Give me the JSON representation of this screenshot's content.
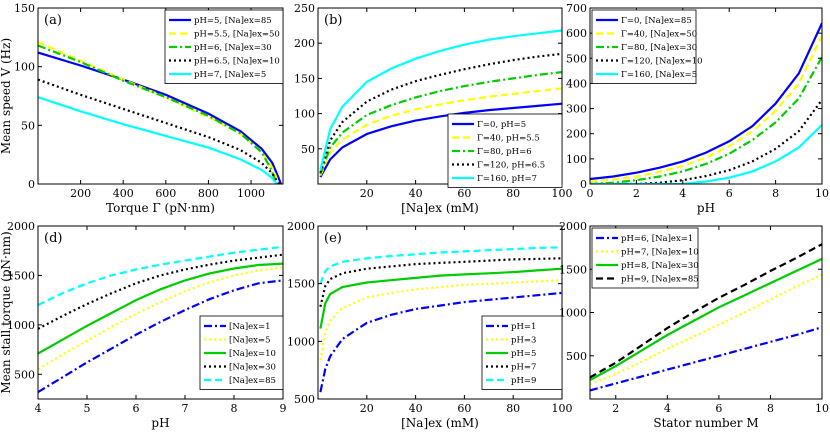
{
  "chart_data": [
    {
      "panel": "(a)",
      "type": "line",
      "xlabel": "Torque Γ (pN·nm)",
      "ylabel": "Mean speed V̄ (Hz)",
      "xlim": [
        0,
        1150
      ],
      "ylim": [
        0,
        150
      ],
      "xticks": [
        200,
        400,
        600,
        800,
        1000
      ],
      "yticks": [
        0,
        50,
        100,
        150
      ],
      "legend_position": "top-right",
      "series": [
        {
          "name": "pH=5, [Na]ex=85",
          "color": "#0000ff",
          "dash": "solid",
          "x": [
            0,
            200,
            400,
            600,
            800,
            950,
            1050,
            1100,
            1130,
            1140
          ],
          "y": [
            112,
            101,
            89,
            76,
            60,
            45,
            30,
            18,
            5,
            0
          ]
        },
        {
          "name": "pH=5.5, [Na]ex=50",
          "color": "#ffff00",
          "dash": "dash",
          "x": [
            0,
            200,
            400,
            600,
            800,
            950,
            1050,
            1100,
            1120,
            1130
          ],
          "y": [
            121,
            105,
            89,
            74,
            57,
            43,
            27,
            14,
            5,
            0
          ]
        },
        {
          "name": "pH=6, [Na]ex=30",
          "color": "#00cc00",
          "dash": "dashdot",
          "x": [
            0,
            200,
            400,
            600,
            800,
            950,
            1050,
            1090,
            1110,
            1120
          ],
          "y": [
            118,
            104,
            88,
            74,
            58,
            43,
            27,
            14,
            5,
            0
          ]
        },
        {
          "name": "pH=6.5, [Na]ex=10",
          "color": "#000000",
          "dash": "dot",
          "x": [
            0,
            200,
            400,
            600,
            800,
            950,
            1050,
            1100,
            1120,
            1130
          ],
          "y": [
            89,
            76,
            64,
            52,
            40,
            29,
            18,
            9,
            3,
            0
          ]
        },
        {
          "name": "pH=7, [Na]ex=5",
          "color": "#00ffff",
          "dash": "solid",
          "x": [
            0,
            200,
            400,
            600,
            800,
            950,
            1050,
            1100,
            1120
          ],
          "y": [
            74,
            62,
            51,
            41,
            31,
            21,
            12,
            5,
            0
          ]
        }
      ]
    },
    {
      "panel": "(b)",
      "type": "line",
      "xlabel": "[Na]ex (mM)",
      "ylabel": "",
      "xlim": [
        0,
        100
      ],
      "ylim": [
        0,
        250
      ],
      "xticks": [
        20,
        40,
        60,
        80,
        100
      ],
      "yticks": [
        50,
        100,
        150,
        200,
        250
      ],
      "legend_position": "bottom-right",
      "series": [
        {
          "name": "Γ=0, pH=5",
          "color": "#0000ff",
          "dash": "solid",
          "x": [
            1,
            5,
            10,
            20,
            30,
            40,
            50,
            60,
            70,
            80,
            90,
            100
          ],
          "y": [
            10,
            35,
            52,
            71,
            82,
            90,
            96,
            101,
            105,
            108,
            111,
            114
          ]
        },
        {
          "name": "Γ=40, pH=5.5",
          "color": "#ffff00",
          "dash": "dash",
          "x": [
            1,
            5,
            10,
            20,
            30,
            40,
            50,
            60,
            70,
            80,
            90,
            100
          ],
          "y": [
            12,
            45,
            63,
            84,
            97,
            106,
            113,
            119,
            124,
            128,
            132,
            136
          ]
        },
        {
          "name": "Γ=80, pH=6",
          "color": "#00cc00",
          "dash": "dashdot",
          "x": [
            1,
            5,
            10,
            20,
            30,
            40,
            50,
            60,
            70,
            80,
            90,
            100
          ],
          "y": [
            14,
            52,
            73,
            98,
            112,
            123,
            132,
            139,
            145,
            150,
            155,
            159
          ]
        },
        {
          "name": "Γ=120, pH=6.5",
          "color": "#000000",
          "dash": "dot",
          "x": [
            1,
            5,
            10,
            20,
            30,
            40,
            50,
            60,
            70,
            80,
            90,
            100
          ],
          "y": [
            16,
            62,
            88,
            117,
            134,
            146,
            155,
            163,
            170,
            176,
            181,
            185
          ]
        },
        {
          "name": "Γ=160, pH=7",
          "color": "#00ffff",
          "dash": "solid",
          "x": [
            1,
            5,
            10,
            20,
            30,
            40,
            50,
            60,
            70,
            80,
            90,
            100
          ],
          "y": [
            20,
            78,
            110,
            145,
            164,
            178,
            189,
            198,
            205,
            210,
            214,
            218
          ]
        }
      ]
    },
    {
      "panel": "(c)",
      "type": "line",
      "xlabel": "pH",
      "ylabel": "",
      "xlim": [
        0,
        10
      ],
      "ylim": [
        0,
        700
      ],
      "xticks": [
        0,
        2,
        4,
        6,
        8,
        10
      ],
      "yticks": [
        0,
        100,
        200,
        300,
        400,
        500,
        600,
        700
      ],
      "legend_position": "top-left",
      "series": [
        {
          "name": "Γ=0, [Na]ex=85",
          "color": "#0000ff",
          "dash": "solid",
          "x": [
            0,
            1,
            2,
            3,
            4,
            5,
            6,
            7,
            8,
            9,
            10
          ],
          "y": [
            20,
            30,
            45,
            65,
            90,
            125,
            170,
            230,
            320,
            440,
            640
          ]
        },
        {
          "name": "Γ=40, [Na]ex=50",
          "color": "#ffff00",
          "dash": "dash",
          "x": [
            0,
            1,
            2,
            3,
            4,
            5,
            6,
            7,
            8,
            9,
            10
          ],
          "y": [
            10,
            18,
            30,
            48,
            72,
            105,
            150,
            210,
            290,
            400,
            590
          ]
        },
        {
          "name": "Γ=80, [Na]ex=30",
          "color": "#00cc00",
          "dash": "dashdot",
          "x": [
            0,
            1,
            2,
            3,
            4,
            5,
            6,
            7,
            8,
            9,
            10
          ],
          "y": [
            0,
            5,
            15,
            30,
            50,
            80,
            120,
            175,
            245,
            340,
            505
          ]
        },
        {
          "name": "Γ=120, [Na]ex=10",
          "color": "#000000",
          "dash": "dot",
          "x": [
            0,
            1,
            2,
            3,
            4,
            5,
            6,
            7,
            8,
            9,
            10
          ],
          "y": [
            0,
            0,
            0,
            5,
            15,
            32,
            55,
            90,
            140,
            210,
            335
          ]
        },
        {
          "name": "Γ=160, [Na]ex=5",
          "color": "#00ffff",
          "dash": "solid",
          "x": [
            0,
            1,
            2,
            3,
            4,
            5,
            6,
            7,
            8,
            9,
            10
          ],
          "y": [
            0,
            0,
            0,
            0,
            0,
            10,
            25,
            50,
            90,
            145,
            235
          ]
        }
      ]
    },
    {
      "panel": "(d)",
      "type": "line",
      "xlabel": "pH",
      "ylabel": "Mean stall torque (pN·nm)",
      "xlim": [
        4,
        9
      ],
      "ylim": [
        250,
        2000
      ],
      "xticks": [
        4,
        5,
        6,
        7,
        8,
        9
      ],
      "yticks": [
        500,
        1000,
        1500,
        2000
      ],
      "legend_position": "bottom-right",
      "series": [
        {
          "name": "[Na]ex=1",
          "color": "#0000ff",
          "dash": "dashdot",
          "x": [
            4,
            4.5,
            5,
            5.5,
            6,
            6.5,
            7,
            7.5,
            8,
            8.5,
            9
          ],
          "y": [
            320,
            470,
            620,
            760,
            900,
            1030,
            1150,
            1260,
            1350,
            1420,
            1450
          ]
        },
        {
          "name": "[Na]ex=5",
          "color": "#ffff00",
          "dash": "dot",
          "x": [
            4,
            4.5,
            5,
            5.5,
            6,
            6.5,
            7,
            7.5,
            8,
            8.5,
            9
          ],
          "y": [
            550,
            700,
            840,
            980,
            1110,
            1230,
            1340,
            1430,
            1500,
            1550,
            1580
          ]
        },
        {
          "name": "[Na]ex=10",
          "color": "#00cc00",
          "dash": "solid",
          "x": [
            4,
            4.5,
            5,
            5.5,
            6,
            6.5,
            7,
            7.5,
            8,
            8.5,
            9
          ],
          "y": [
            710,
            850,
            990,
            1120,
            1250,
            1360,
            1450,
            1520,
            1570,
            1605,
            1620
          ]
        },
        {
          "name": "[Na]ex=30",
          "color": "#000000",
          "dash": "dot",
          "x": [
            4,
            4.5,
            5,
            5.5,
            6,
            6.5,
            7,
            7.5,
            8,
            8.5,
            9
          ],
          "y": [
            960,
            1090,
            1210,
            1320,
            1420,
            1500,
            1560,
            1610,
            1650,
            1680,
            1710
          ]
        },
        {
          "name": "[Na]ex=85",
          "color": "#00ffff",
          "dash": "dash",
          "x": [
            4,
            4.5,
            5,
            5.5,
            6,
            6.5,
            7,
            7.5,
            8,
            8.5,
            9
          ],
          "y": [
            1200,
            1320,
            1420,
            1500,
            1560,
            1610,
            1650,
            1690,
            1730,
            1760,
            1790
          ]
        }
      ]
    },
    {
      "panel": "(e)",
      "type": "line",
      "xlabel": "[Na]ex (mM)",
      "ylabel": "",
      "xlim": [
        0,
        100
      ],
      "ylim": [
        500,
        2000
      ],
      "xticks": [
        20,
        40,
        60,
        80,
        100
      ],
      "yticks": [
        500,
        1000,
        1500,
        2000
      ],
      "legend_position": "bottom-right",
      "series": [
        {
          "name": "pH=1",
          "color": "#0000ff",
          "dash": "dashdot",
          "x": [
            1,
            3,
            5,
            10,
            20,
            30,
            40,
            50,
            60,
            70,
            80,
            90,
            100
          ],
          "y": [
            560,
            760,
            870,
            1020,
            1160,
            1230,
            1280,
            1310,
            1340,
            1360,
            1380,
            1400,
            1420
          ]
        },
        {
          "name": "pH=3",
          "color": "#ffff00",
          "dash": "dot",
          "x": [
            1,
            3,
            5,
            10,
            20,
            30,
            40,
            50,
            60,
            70,
            80,
            90,
            100
          ],
          "y": [
            840,
            1080,
            1180,
            1290,
            1380,
            1420,
            1450,
            1470,
            1490,
            1500,
            1510,
            1520,
            1530
          ]
        },
        {
          "name": "pH=5",
          "color": "#00cc00",
          "dash": "solid",
          "x": [
            1,
            3,
            5,
            10,
            20,
            30,
            40,
            50,
            60,
            70,
            80,
            90,
            100
          ],
          "y": [
            1110,
            1330,
            1410,
            1470,
            1510,
            1530,
            1550,
            1570,
            1580,
            1590,
            1600,
            1615,
            1630
          ]
        },
        {
          "name": "pH=7",
          "color": "#000000",
          "dash": "dot",
          "x": [
            1,
            3,
            5,
            10,
            20,
            30,
            40,
            50,
            60,
            70,
            80,
            90,
            100
          ],
          "y": [
            1300,
            1480,
            1540,
            1590,
            1630,
            1650,
            1670,
            1680,
            1690,
            1700,
            1710,
            1715,
            1720
          ]
        },
        {
          "name": "pH=9",
          "color": "#00ffff",
          "dash": "dash",
          "x": [
            1,
            3,
            5,
            10,
            20,
            30,
            40,
            50,
            60,
            70,
            80,
            90,
            100
          ],
          "y": [
            1500,
            1610,
            1650,
            1690,
            1720,
            1740,
            1755,
            1770,
            1780,
            1790,
            1800,
            1810,
            1815
          ]
        }
      ]
    },
    {
      "panel": "(f)",
      "type": "line",
      "xlabel": "Stator number M",
      "ylabel": "",
      "xlim": [
        1,
        10
      ],
      "ylim": [
        0,
        2000
      ],
      "xticks": [
        2,
        4,
        6,
        8,
        10
      ],
      "yticks": [
        500,
        1000,
        1500,
        2000
      ],
      "legend_position": "top-left",
      "series": [
        {
          "name": "pH=6, [Na]ex=1",
          "color": "#0000ff",
          "dash": "dashdot",
          "x": [
            1,
            2,
            3,
            4,
            5,
            6,
            7,
            8,
            9,
            10
          ],
          "y": [
            100,
            180,
            260,
            340,
            420,
            500,
            580,
            660,
            740,
            830
          ]
        },
        {
          "name": "pH=7, [Na]ex=10",
          "color": "#ffff00",
          "dash": "dot",
          "x": [
            1,
            2,
            3,
            4,
            5,
            6,
            7,
            8,
            9,
            10
          ],
          "y": [
            170,
            290,
            430,
            580,
            720,
            860,
            1000,
            1150,
            1300,
            1440
          ]
        },
        {
          "name": "pH=8, [Na]ex=30",
          "color": "#00cc00",
          "dash": "solid",
          "x": [
            1,
            2,
            3,
            4,
            5,
            6,
            7,
            8,
            9,
            10
          ],
          "y": [
            220,
            380,
            560,
            740,
            900,
            1060,
            1200,
            1340,
            1480,
            1620
          ]
        },
        {
          "name": "pH=9, [Na]ex=85",
          "color": "#000000",
          "dash": "dash",
          "x": [
            1,
            2,
            3,
            4,
            5,
            6,
            7,
            8,
            9,
            10
          ],
          "y": [
            250,
            420,
            620,
            820,
            1000,
            1170,
            1320,
            1480,
            1630,
            1790
          ]
        }
      ]
    }
  ]
}
